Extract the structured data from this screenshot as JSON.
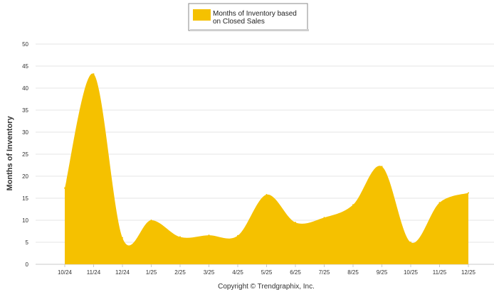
{
  "chart_data": {
    "type": "area",
    "categories": [
      "10/24",
      "11/24",
      "12/24",
      "1/25",
      "2/25",
      "3/25",
      "4/25",
      "5/25",
      "6/25",
      "7/25",
      "8/25",
      "9/25",
      "10/25",
      "11/25",
      "12/25"
    ],
    "series": [
      {
        "name": "Months of Inventory based on Closed Sales",
        "values": [
          17.3,
          43.2,
          6.0,
          10.0,
          6.2,
          6.6,
          6.5,
          15.8,
          9.5,
          10.6,
          13.5,
          22.2,
          5.0,
          14.0,
          16.2
        ],
        "color": "#F5C100"
      }
    ],
    "ylabel": "Months of Inventory",
    "xlabel": "",
    "ylim": [
      0,
      50
    ],
    "yticks": [
      0,
      5,
      10,
      15,
      20,
      25,
      30,
      35,
      40,
      45,
      50
    ],
    "grid": true,
    "legend_position": "top-center",
    "legend_lines": [
      "Months of Inventory based",
      "on Closed Sales"
    ],
    "credit": "Copyright © Trendgraphix, Inc."
  }
}
